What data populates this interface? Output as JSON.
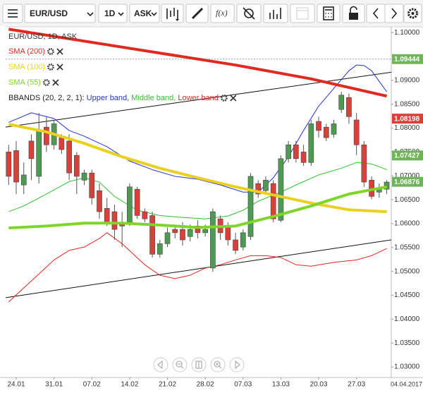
{
  "toolbar": {
    "symbol": "EUR/USD",
    "interval": "1D",
    "price_type": "ASK",
    "fx": "f(x)"
  },
  "chart_data": {
    "type": "candlestick",
    "title": "EUR/USD, 1D, ASK",
    "categories": [
      null,
      "24.01",
      null,
      null,
      null,
      null,
      "31.01",
      null,
      null,
      null,
      null,
      "07.02",
      null,
      null,
      null,
      null,
      "14.02",
      null,
      null,
      null,
      null,
      "21.02",
      null,
      null,
      null,
      null,
      "28.02",
      null,
      null,
      null,
      null,
      "07.03",
      null,
      null,
      null,
      null,
      "13.03",
      null,
      null,
      null,
      null,
      "20.03",
      null,
      null,
      null,
      null,
      "27.03",
      null,
      null,
      null,
      null
    ],
    "x_end_label": "04.04.2017",
    "open": [
      1.075,
      1.0753,
      1.0681,
      1.0773,
      1.0699,
      1.0802,
      1.0765,
      1.078,
      1.0773,
      1.0743,
      1.0691,
      1.0706,
      1.0669,
      1.0632,
      1.0625,
      1.0603,
      1.0603,
      1.0672,
      1.0625,
      1.0617,
      1.0536,
      1.0558,
      1.0588,
      1.0588,
      1.0573,
      1.0595,
      1.0581,
      1.0507,
      1.061,
      1.0595,
      1.0566,
      1.0551,
      1.0573,
      1.0684,
      1.0669,
      1.0684,
      1.0607,
      1.0736,
      1.0765,
      1.075,
      1.0728,
      1.0814,
      1.0802,
      1.0787,
      1.0839,
      1.0864,
      1.0817,
      1.0765,
      1.0691,
      1.0666,
      1.0672
    ],
    "high": [
      1.0765,
      1.0773,
      1.0728,
      1.0787,
      1.0832,
      1.0824,
      1.0817,
      1.0787,
      1.0787,
      1.075,
      1.0713,
      1.0713,
      1.0684,
      1.0654,
      1.064,
      1.0625,
      1.0684,
      1.0677,
      1.0632,
      1.0625,
      1.0566,
      1.0592,
      1.0598,
      1.0603,
      1.0598,
      1.0607,
      1.0598,
      1.0632,
      1.0617,
      1.0603,
      1.0581,
      1.0588,
      1.0706,
      1.0691,
      1.0699,
      1.0691,
      1.0743,
      1.0773,
      1.0773,
      1.0765,
      1.0817,
      1.0824,
      1.0809,
      1.0817,
      1.0876,
      1.0872,
      1.0832,
      1.0773,
      1.0699,
      1.0684,
      1.0691
    ],
    "low": [
      1.0681,
      1.0662,
      1.0662,
      1.0691,
      1.0684,
      1.075,
      1.0755,
      1.0746,
      1.0691,
      1.0662,
      1.0681,
      1.064,
      1.061,
      1.0595,
      1.0566,
      1.0551,
      1.0595,
      1.061,
      1.0603,
      1.0529,
      1.0529,
      1.0551,
      1.0569,
      1.0554,
      1.0563,
      1.0569,
      1.0573,
      1.0499,
      1.0566,
      1.0554,
      1.0536,
      1.0544,
      1.0566,
      1.0654,
      1.0662,
      1.0603,
      1.0603,
      1.0728,
      1.0728,
      1.0721,
      1.0721,
      1.078,
      1.0773,
      1.078,
      1.0832,
      1.0809,
      1.0743,
      1.0677,
      1.0651,
      1.0654,
      1.0662
    ],
    "close": [
      1.0699,
      1.0687,
      1.0702,
      1.0736,
      1.0795,
      1.0765,
      1.0809,
      1.0755,
      1.0706,
      1.0699,
      1.0706,
      1.0654,
      1.0625,
      1.0603,
      1.0588,
      1.0595,
      1.0677,
      1.0617,
      1.061,
      1.0536,
      1.0558,
      1.0581,
      1.0581,
      1.0566,
      1.0588,
      1.0581,
      1.0588,
      1.0625,
      1.0581,
      1.0566,
      1.0544,
      1.0581,
      1.0699,
      1.0662,
      1.0691,
      1.061,
      1.0736,
      1.0765,
      1.0736,
      1.0728,
      1.0809,
      1.0795,
      1.078,
      1.0809,
      1.0869,
      1.0824,
      1.0765,
      1.0687,
      1.0657,
      1.0672,
      1.0687
    ],
    "up_color": "#4e9a52",
    "down_color": "#d9403a",
    "xlim": [
      -0.4,
      50.6
    ],
    "ylim": [
      1.0278,
      1.1012
    ],
    "yticks": [
      {
        "value": 1.1,
        "label": "1.10000"
      },
      {
        "value": 1.09,
        "label": "1.09000"
      },
      {
        "value": 1.085,
        "label": "1.08500"
      },
      {
        "value": 1.08,
        "label": "1.08000"
      },
      {
        "value": 1.075,
        "label": "1.07500"
      },
      {
        "value": 1.07,
        "label": "1.07000"
      },
      {
        "value": 1.065,
        "label": "1.06500"
      },
      {
        "value": 1.06,
        "label": "1.06000"
      },
      {
        "value": 1.055,
        "label": "1.05500"
      },
      {
        "value": 1.05,
        "label": "1.05000"
      },
      {
        "value": 1.045,
        "label": "1.04500"
      },
      {
        "value": 1.04,
        "label": "1.04000"
      },
      {
        "value": 1.035,
        "label": "1.03500"
      },
      {
        "value": 1.03,
        "label": "1.03000"
      }
    ],
    "grid": false,
    "sma": [
      {
        "name": "SMA (200)",
        "color": "#e02a1f",
        "x": [
          0,
          10,
          20,
          30,
          40,
          50
        ],
        "values": [
          1.1007,
          1.0982,
          1.0957,
          1.0932,
          1.0903,
          1.0867
        ]
      },
      {
        "name": "SMA (100)",
        "color": "#e8d11f",
        "x": [
          0,
          5,
          10,
          15,
          20,
          25,
          30,
          35,
          40,
          45,
          50
        ],
        "values": [
          1.0808,
          1.0792,
          1.0768,
          1.074,
          1.0716,
          1.0696,
          1.0677,
          1.066,
          1.0643,
          1.0629,
          1.0625
        ]
      },
      {
        "name": "SMA (55)",
        "color": "#7fd62a",
        "x": [
          0,
          5,
          10,
          15,
          20,
          25,
          30,
          35,
          40,
          45,
          50
        ],
        "values": [
          1.0591,
          1.0595,
          1.0601,
          1.0601,
          1.0597,
          1.0592,
          1.0595,
          1.0615,
          1.0637,
          1.0662,
          1.0677
        ]
      }
    ],
    "bbands": {
      "label": "BBANDS (20, 2, 2, 1):",
      "series": [
        {
          "name": "Upper band,",
          "color": "#2233d8",
          "x": [
            0,
            3,
            6,
            8,
            10,
            13,
            16,
            19,
            22,
            25,
            28,
            31,
            33,
            35,
            37,
            39,
            41,
            43,
            45,
            46,
            47,
            48,
            50
          ],
          "values": [
            1.0812,
            1.0832,
            1.082,
            1.0795,
            1.0783,
            1.0761,
            1.0731,
            1.0713,
            1.0699,
            1.0693,
            1.0681,
            1.0666,
            1.0666,
            1.0696,
            1.074,
            1.0795,
            1.0846,
            1.0883,
            1.092,
            1.0932,
            1.0931,
            1.092,
            1.0876
          ]
        },
        {
          "name": "Middle band,",
          "color": "#2fbf2f",
          "x": [
            0,
            2,
            5,
            8,
            10,
            12,
            14,
            17,
            20,
            23,
            26,
            29,
            31,
            33,
            36,
            38,
            41,
            44,
            46,
            48,
            50
          ],
          "values": [
            1.0625,
            1.0637,
            1.0662,
            1.0688,
            1.0696,
            1.0687,
            1.0657,
            1.0628,
            1.0617,
            1.0613,
            1.061,
            1.0616,
            1.0628,
            1.0647,
            1.0666,
            1.0681,
            1.0702,
            1.0716,
            1.0728,
            1.0725,
            1.0713
          ]
        },
        {
          "name": "Lower band",
          "color": "#e3241f",
          "x": [
            0,
            1,
            3,
            6,
            8,
            10,
            12,
            13,
            15,
            18,
            20,
            22,
            24,
            26,
            28,
            30,
            32,
            34,
            36,
            38,
            40,
            43,
            46,
            48,
            50
          ],
          "values": [
            1.0436,
            1.0451,
            1.048,
            1.0524,
            1.0544,
            1.0551,
            1.0569,
            1.0581,
            1.0558,
            1.0514,
            1.0492,
            1.0485,
            1.0492,
            1.0507,
            1.0514,
            1.0524,
            1.0533,
            1.0533,
            1.0529,
            1.0514,
            1.0511,
            1.0519,
            1.0524,
            1.0533,
            1.0548
          ]
        }
      ]
    },
    "trendlines": [
      {
        "color": "#111111",
        "x": [
          -0.4,
          50.6
        ],
        "values": [
          1.0802,
          1.0917
        ]
      },
      {
        "color": "#111111",
        "x": [
          -0.4,
          50.6
        ],
        "values": [
          1.0445,
          1.0566
        ]
      }
    ],
    "price_line": {
      "value": 1.09444,
      "color": "#9aa3a8"
    },
    "price_markers": [
      {
        "value": 1.09444,
        "color": "#6fb35a"
      },
      {
        "value": 1.08198,
        "color": "#d9403a"
      },
      {
        "value": 1.07427,
        "color": "#6fb35a"
      },
      {
        "value": 1.06876,
        "color": "#6fb35a"
      }
    ]
  }
}
